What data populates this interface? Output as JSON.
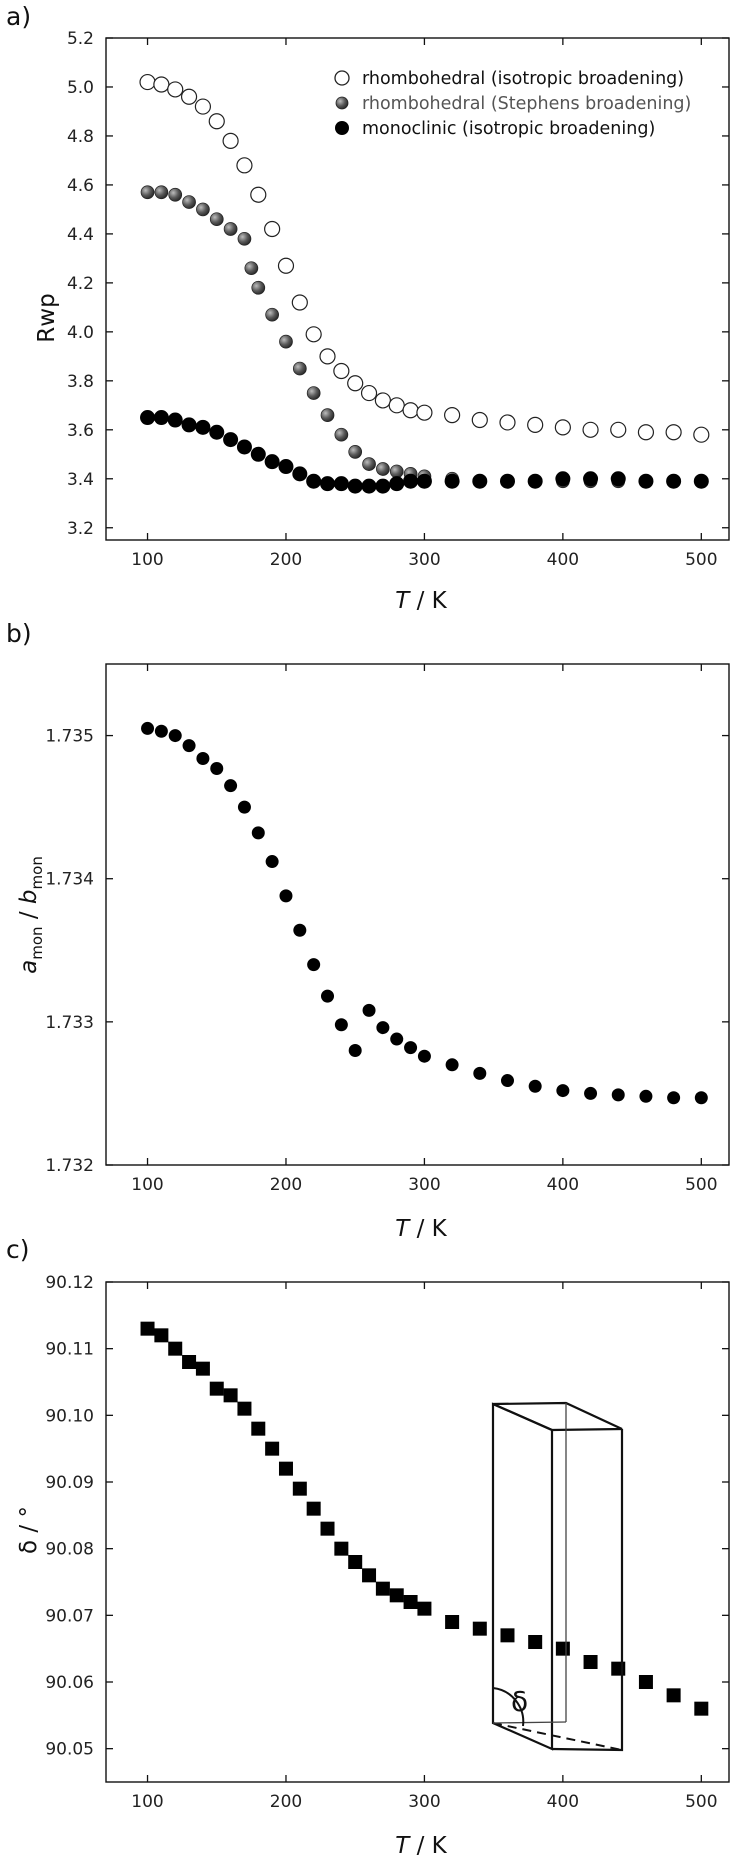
{
  "figure": {
    "panels": [
      "a)",
      "b)",
      "c)"
    ]
  },
  "chart_data": [
    {
      "type": "scatter",
      "panel": "a)",
      "xlabel_italic": "T",
      "xlabel_rest": " / K",
      "ylabel": "Rwp",
      "xlim": [
        70,
        520
      ],
      "ylim": [
        3.15,
        5.2
      ],
      "xticks": [
        100,
        200,
        300,
        400,
        500
      ],
      "yticks": [
        3.2,
        3.4,
        3.6,
        3.8,
        4.0,
        4.2,
        4.4,
        4.6,
        4.8,
        5.0,
        5.2
      ],
      "ytick_labels": [
        "3.2",
        "3.4",
        "3.6",
        "3.8",
        "4.0",
        "4.2",
        "4.4",
        "4.6",
        "4.8",
        "5.0",
        "5.2"
      ],
      "legend_position": "top-right",
      "series": [
        {
          "name": "rhombohedral (isotropic broadening)",
          "marker": "open-circle",
          "color": "#ffffff",
          "x": [
            100,
            110,
            120,
            130,
            140,
            150,
            160,
            170,
            180,
            190,
            200,
            210,
            220,
            230,
            240,
            250,
            260,
            270,
            280,
            290,
            300,
            320,
            340,
            360,
            380,
            400,
            420,
            440,
            460,
            480,
            500
          ],
          "y": [
            5.02,
            5.01,
            4.99,
            4.96,
            4.92,
            4.86,
            4.78,
            4.68,
            4.56,
            4.42,
            4.27,
            4.12,
            3.99,
            3.9,
            3.84,
            3.79,
            3.75,
            3.72,
            3.7,
            3.68,
            3.67,
            3.66,
            3.64,
            3.63,
            3.62,
            3.61,
            3.6,
            3.6,
            3.59,
            3.59,
            3.58
          ]
        },
        {
          "name": "rhombohedral (Stephens broadening)",
          "marker": "grey-sphere",
          "color": "#555555",
          "x": [
            100,
            110,
            120,
            130,
            140,
            150,
            160,
            170,
            175,
            180,
            190,
            200,
            210,
            220,
            230,
            240,
            250,
            260,
            270,
            280,
            290,
            300,
            320,
            340,
            360,
            380,
            400,
            420,
            440,
            460,
            480,
            500
          ],
          "y": [
            4.57,
            4.57,
            4.56,
            4.53,
            4.5,
            4.46,
            4.42,
            4.38,
            4.26,
            4.18,
            4.07,
            3.96,
            3.85,
            3.75,
            3.66,
            3.58,
            3.51,
            3.46,
            3.44,
            3.43,
            3.42,
            3.41,
            3.4,
            3.39,
            3.39,
            3.39,
            3.39,
            3.39,
            3.39,
            3.39,
            3.39,
            3.39
          ]
        },
        {
          "name": "monoclinic (isotropic broadening)",
          "marker": "filled-circle",
          "color": "#000000",
          "x": [
            100,
            110,
            120,
            130,
            140,
            150,
            160,
            170,
            180,
            190,
            200,
            210,
            220,
            230,
            240,
            250,
            260,
            270,
            280,
            290,
            300,
            320,
            340,
            360,
            380,
            400,
            420,
            440,
            460,
            480,
            500
          ],
          "y": [
            3.65,
            3.65,
            3.64,
            3.62,
            3.61,
            3.59,
            3.56,
            3.53,
            3.5,
            3.47,
            3.45,
            3.42,
            3.39,
            3.38,
            3.38,
            3.37,
            3.37,
            3.37,
            3.38,
            3.39,
            3.39,
            3.39,
            3.39,
            3.39,
            3.39,
            3.4,
            3.4,
            3.4,
            3.39,
            3.39,
            3.39
          ]
        }
      ]
    },
    {
      "type": "scatter",
      "panel": "b)",
      "xlabel_italic": "T",
      "xlabel_rest": " / K",
      "ylabel_a": "a",
      "ylabel_a_sub": "mon",
      "ylabel_sep": " / ",
      "ylabel_b": "b",
      "ylabel_b_sub": "mon",
      "xlim": [
        70,
        520
      ],
      "ylim": [
        1.732,
        1.7355
      ],
      "xticks": [
        100,
        200,
        300,
        400,
        500
      ],
      "yticks": [
        1.732,
        1.733,
        1.734,
        1.735
      ],
      "ytick_labels": [
        "1.732",
        "1.733",
        "1.734",
        "1.735"
      ],
      "series": [
        {
          "marker": "filled-circle",
          "color": "#000000",
          "x": [
            100,
            110,
            120,
            130,
            140,
            150,
            160,
            170,
            180,
            190,
            200,
            210,
            220,
            230,
            240,
            250,
            260,
            270,
            280,
            290,
            300,
            320,
            340,
            360,
            380,
            400,
            420,
            440,
            460,
            480,
            500
          ],
          "y": [
            1.73505,
            1.73503,
            1.735,
            1.73493,
            1.73484,
            1.73477,
            1.73465,
            1.7345,
            1.73432,
            1.73412,
            1.73388,
            1.73364,
            1.7334,
            1.73318,
            1.73298,
            1.7328,
            1.73308,
            1.73296,
            1.73288,
            1.73282,
            1.73276,
            1.7327,
            1.73264,
            1.73259,
            1.73255,
            1.73252,
            1.7325,
            1.73249,
            1.73248,
            1.73247,
            1.73247
          ]
        }
      ]
    },
    {
      "type": "scatter",
      "panel": "c)",
      "xlabel_italic": "T",
      "xlabel_rest": " / K",
      "ylabel": "δ / °",
      "xlim": [
        70,
        520
      ],
      "ylim": [
        90.045,
        90.12
      ],
      "xticks": [
        100,
        200,
        300,
        400,
        500
      ],
      "yticks": [
        90.05,
        90.06,
        90.07,
        90.08,
        90.09,
        90.1,
        90.11,
        90.12
      ],
      "ytick_labels": [
        "90.05",
        "90.06",
        "90.07",
        "90.08",
        "90.09",
        "90.10",
        "90.11",
        "90.12"
      ],
      "inset_symbol": "δ",
      "series": [
        {
          "marker": "filled-square",
          "color": "#000000",
          "x": [
            100,
            110,
            120,
            130,
            140,
            150,
            160,
            170,
            180,
            190,
            200,
            210,
            220,
            230,
            240,
            250,
            260,
            270,
            280,
            290,
            300,
            320,
            340,
            360,
            380,
            400,
            420,
            440,
            460,
            480,
            500
          ],
          "y": [
            90.113,
            90.112,
            90.11,
            90.108,
            90.107,
            90.104,
            90.103,
            90.101,
            90.098,
            90.095,
            90.092,
            90.089,
            90.086,
            90.083,
            90.08,
            90.078,
            90.076,
            90.074,
            90.073,
            90.072,
            90.071,
            90.069,
            90.068,
            90.067,
            90.066,
            90.065,
            90.063,
            90.062,
            90.06,
            90.058,
            90.056
          ]
        }
      ]
    }
  ]
}
